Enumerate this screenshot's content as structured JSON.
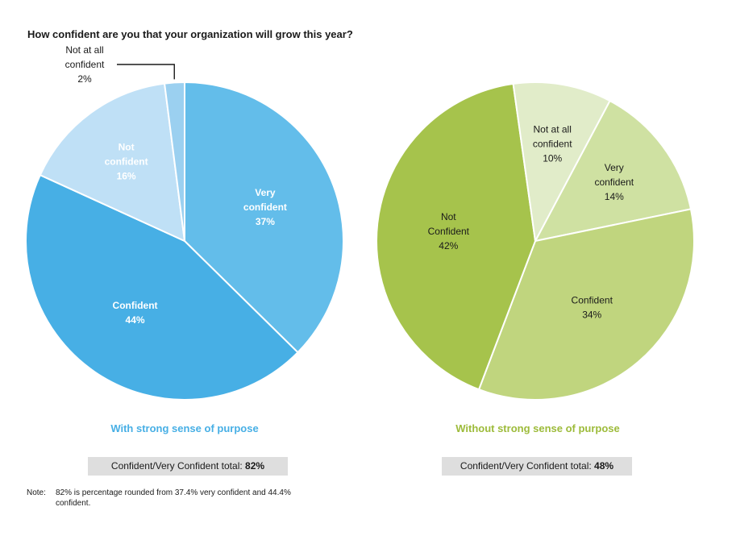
{
  "title": "How confident are you that your organization will grow this year?",
  "chart_data": [
    {
      "type": "pie",
      "title": "With strong sense of purpose",
      "total_label": "Confident/Very Confident total:",
      "total_value": "82%",
      "slices": [
        {
          "label": [
            "Very",
            "confident"
          ],
          "value": 37,
          "value_label": "37%",
          "color": "#63bdea",
          "text_color": "#ffffff",
          "bold": true
        },
        {
          "label": [
            "Confident"
          ],
          "value": 44,
          "value_label": "44%",
          "color": "#47afe5",
          "text_color": "#ffffff",
          "bold": true
        },
        {
          "label": [
            "Not",
            "confident"
          ],
          "value": 16,
          "value_label": "16%",
          "color": "#bfe0f6",
          "text_color": "#ffffff",
          "bold": true
        },
        {
          "label": [
            "Not at all",
            "confident"
          ],
          "value": 2,
          "value_label": "2%",
          "color": "#9bd0f0",
          "text_color": "#1a1a1a",
          "bold": false,
          "callout": true
        }
      ]
    },
    {
      "type": "pie",
      "title": "Without strong sense of purpose",
      "total_label": "Confident/Very Confident total:",
      "total_value": "48%",
      "slices": [
        {
          "label": [
            "Very",
            "confident"
          ],
          "value": 14,
          "value_label": "14%",
          "color": "#cfe1a2",
          "text_color": "#1a1a1a",
          "bold": false
        },
        {
          "label": [
            "Confident"
          ],
          "value": 34,
          "value_label": "34%",
          "color": "#c0d57e",
          "text_color": "#1a1a1a",
          "bold": false
        },
        {
          "label": [
            "Not",
            "Confident"
          ],
          "value": 42,
          "value_label": "42%",
          "color": "#a6c34c",
          "text_color": "#1a1a1a",
          "bold": false
        },
        {
          "label": [
            "Not at all",
            "confident"
          ],
          "value": 10,
          "value_label": "10%",
          "color": "#e1ecc9",
          "text_color": "#1a1a1a",
          "bold": false
        }
      ]
    }
  ],
  "note": {
    "label": "Note:",
    "text": "82% is percentage rounded from 37.4% very confident and 44.4% confident."
  },
  "colors": {
    "left_subtitle": "#47afe5",
    "right_subtitle": "#9dbb3a"
  }
}
